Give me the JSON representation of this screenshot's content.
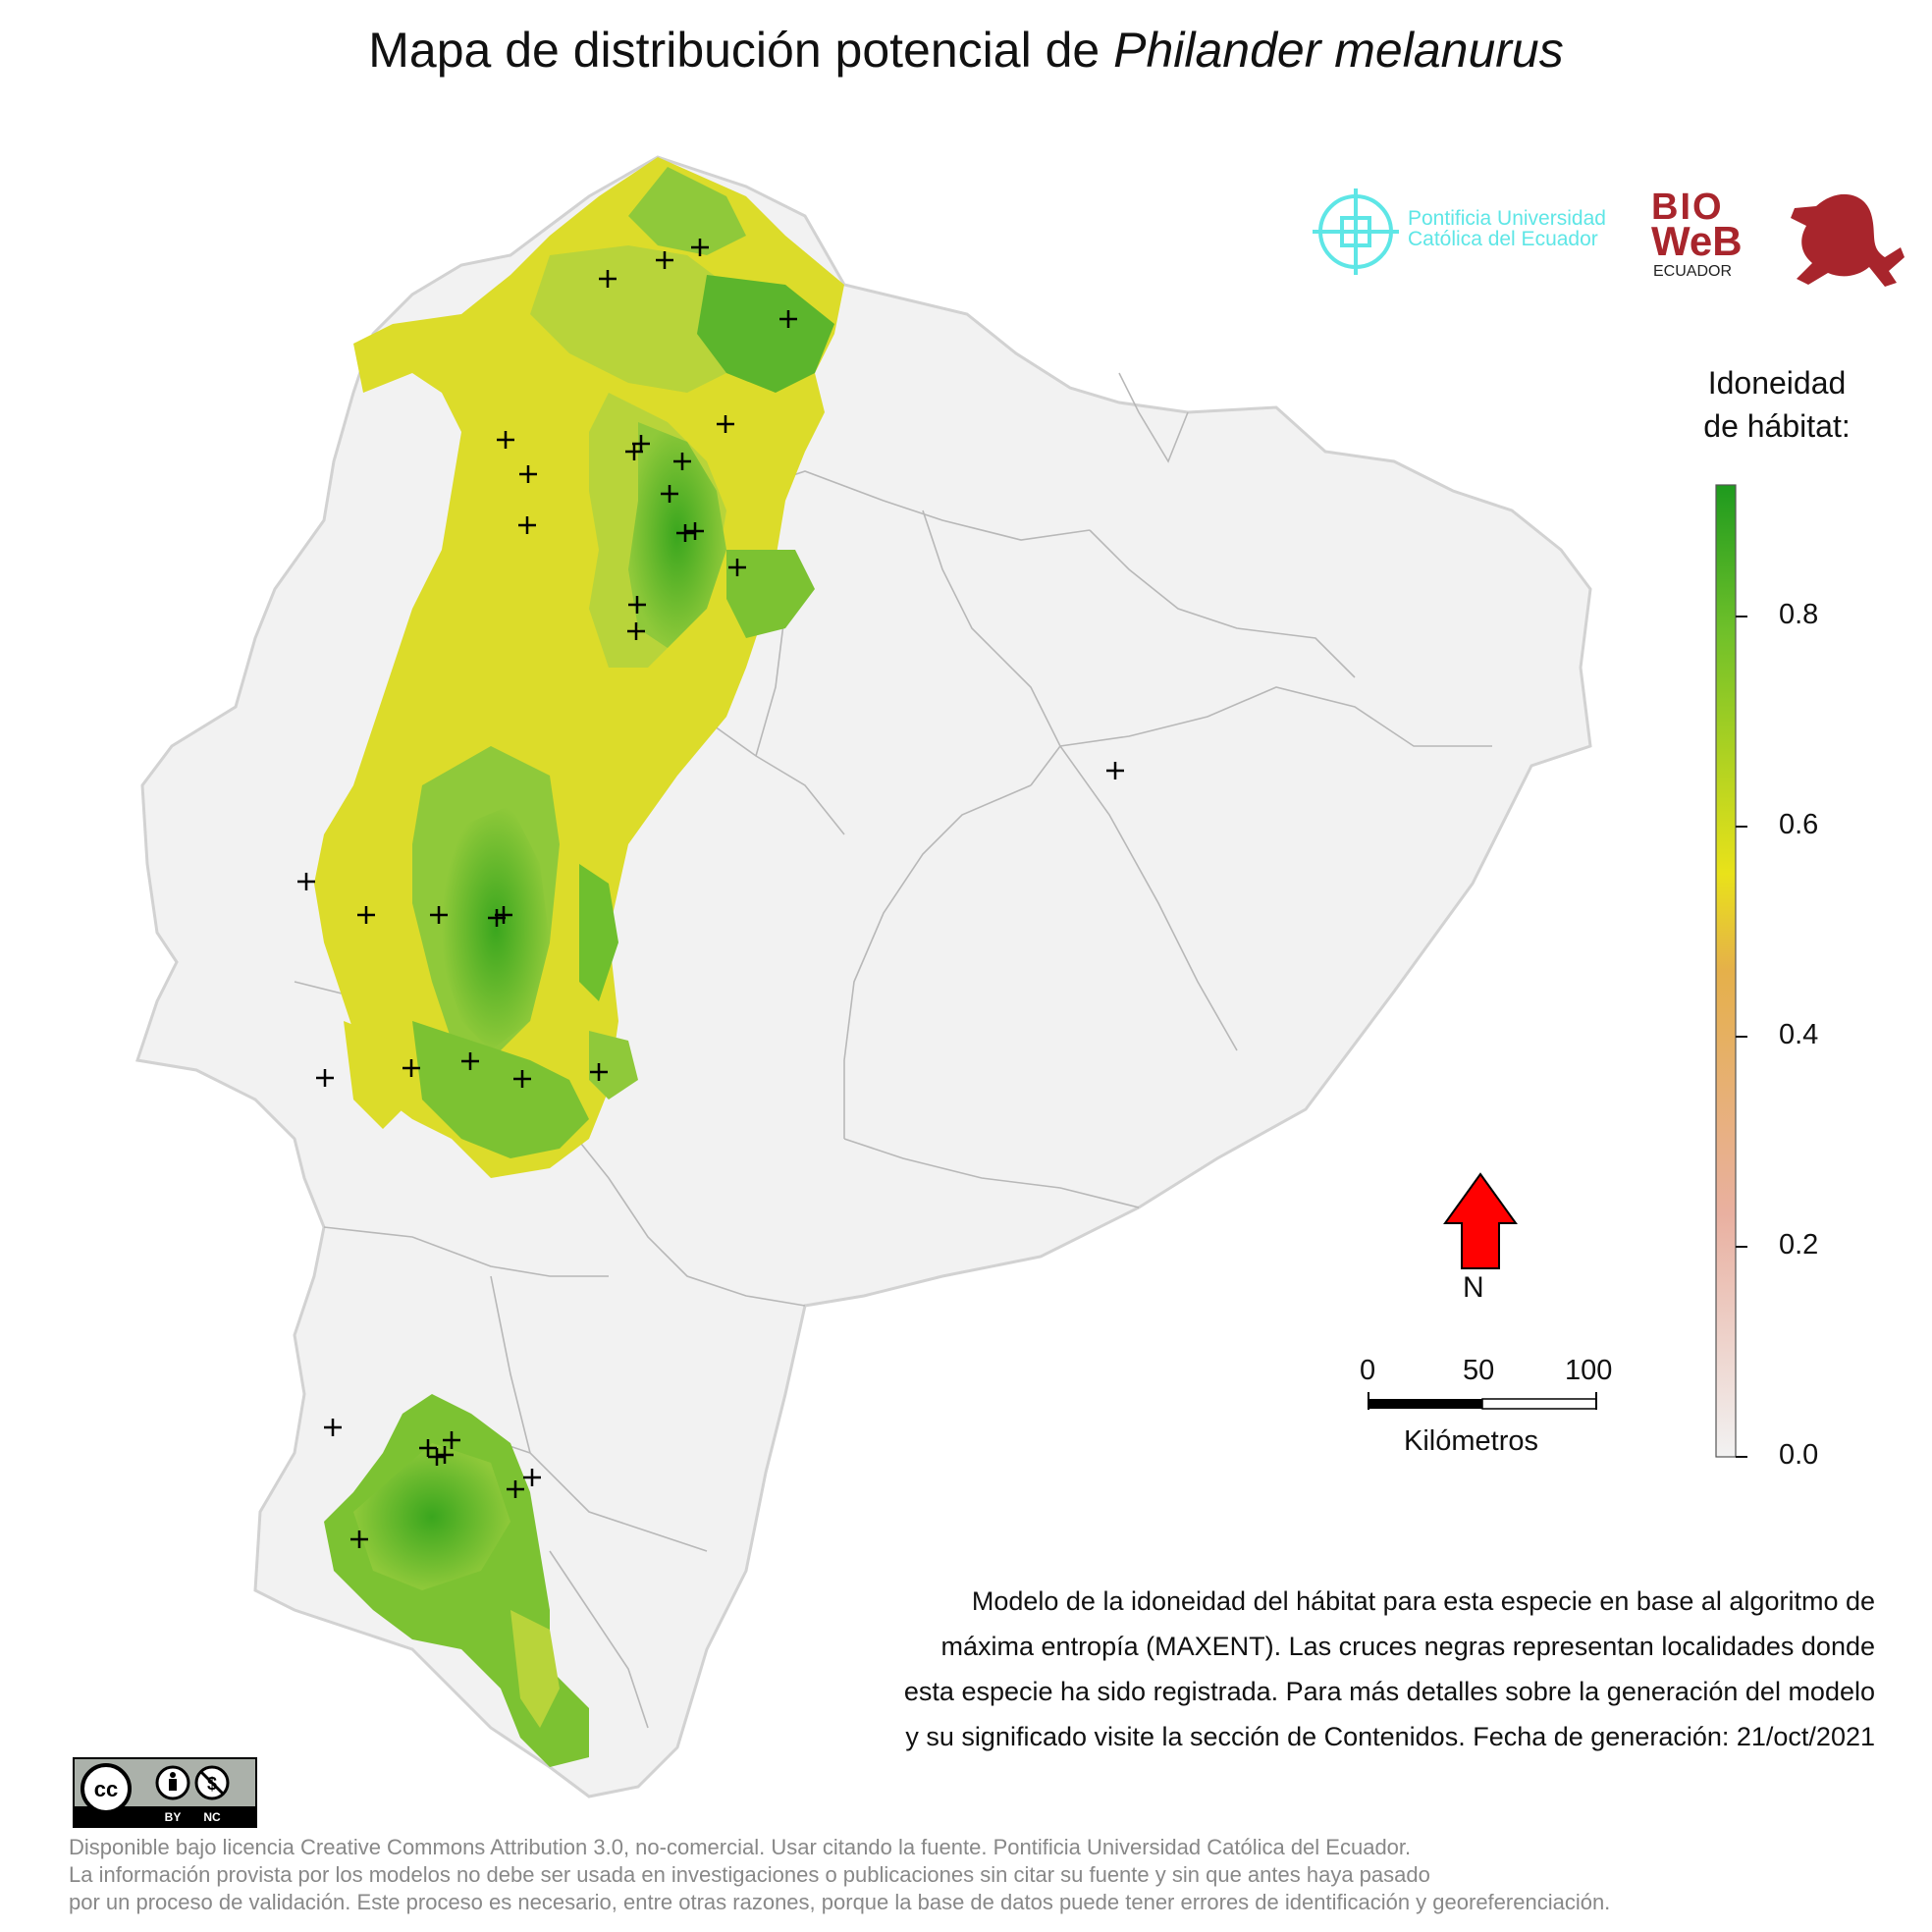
{
  "title": {
    "text": "Mapa de distribución potencial de",
    "species": "Philander melanurus"
  },
  "logos": {
    "puce_line1": "Pontificia Universidad",
    "puce_line2": "Católica del Ecuador",
    "bioweb_bio": "BIO",
    "bioweb_web": "WeB",
    "bioweb_ecuador": "ECUADOR"
  },
  "legend": {
    "title_line1": "Idoneidad",
    "title_line2": "de hábitat:",
    "ticks": [
      "0.8",
      "0.6",
      "0.4",
      "0.2",
      "0.0"
    ],
    "colors": {
      "high": "#1e9a1e",
      "mid": "#e9e21a",
      "low_mid": "#e5b04a",
      "low": "#f2f2f2"
    }
  },
  "north": {
    "label": "N",
    "color": "#ff0000"
  },
  "scale": {
    "labels": [
      "0",
      "50",
      "100"
    ],
    "unit": "Kilómetros"
  },
  "description": [
    "Modelo de la idoneidad del hábitat para esta especie en base al algoritmo de",
    "máxima entropía (MAXENT). Las cruces negras representan localidades donde",
    "esta especie ha sido registrada. Para más detalles sobre la generación del modelo",
    "y su significado visite la sección de Contenidos. Fecha de generación: 21/oct/2021"
  ],
  "license": {
    "badge_by": "BY",
    "badge_nc": "NC"
  },
  "footer": [
    "Disponible bajo licencia Creative Commons Attribution 3.0, no-comercial. Usar citando la fuente. Pontificia Universidad Católica del Ecuador.",
    "La información provista por los modelos no debe ser usada en investigaciones o publicaciones sin citar su fuente y sin que antes haya pasado",
    "por un proceso de validación. Este proceso es necesario, entre otras razones, porque la base de datos puede tener errores de identificación y georeferenciación."
  ],
  "map": {
    "country_fill": "#f2f2f2",
    "border_color": "#bdbdbd",
    "marker_color": "#000000"
  }
}
